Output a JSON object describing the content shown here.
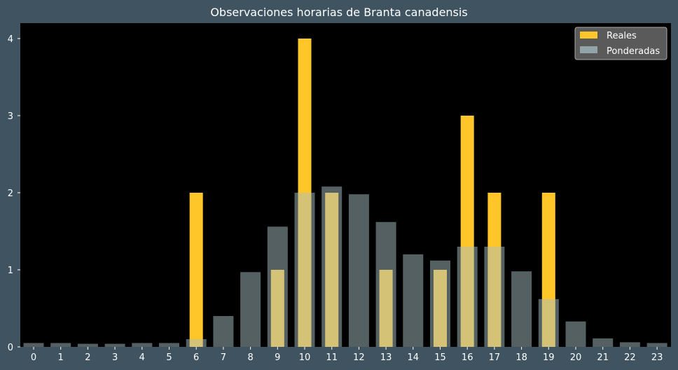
{
  "chart_data": {
    "type": "bar",
    "title": "Observaciones horarias de Branta canadensis",
    "xlabel": "",
    "ylabel": "",
    "categories": [
      "0",
      "1",
      "2",
      "3",
      "4",
      "5",
      "6",
      "7",
      "8",
      "9",
      "10",
      "11",
      "12",
      "13",
      "14",
      "15",
      "16",
      "17",
      "18",
      "19",
      "20",
      "21",
      "22",
      "23"
    ],
    "ylim": [
      0,
      4.2
    ],
    "yticks": [
      "0",
      "1",
      "2",
      "3",
      "4"
    ],
    "grid": false,
    "legend_position": "top-right",
    "series": [
      {
        "name": "Reales",
        "color": "#ffc629",
        "values": [
          0,
          0,
          0,
          0,
          0,
          0,
          2,
          0,
          0,
          1,
          4,
          2,
          0,
          1,
          0,
          1,
          3,
          2,
          0,
          2,
          0,
          0,
          0,
          0
        ]
      },
      {
        "name": "Ponderadas",
        "color": "#a9c0c6",
        "values": [
          0.05,
          0.05,
          0.04,
          0.04,
          0.05,
          0.05,
          0.1,
          0.4,
          0.97,
          1.56,
          2.0,
          2.08,
          1.98,
          1.62,
          1.2,
          1.12,
          1.3,
          1.3,
          0.98,
          0.62,
          0.33,
          0.11,
          0.06,
          0.05
        ]
      }
    ]
  }
}
